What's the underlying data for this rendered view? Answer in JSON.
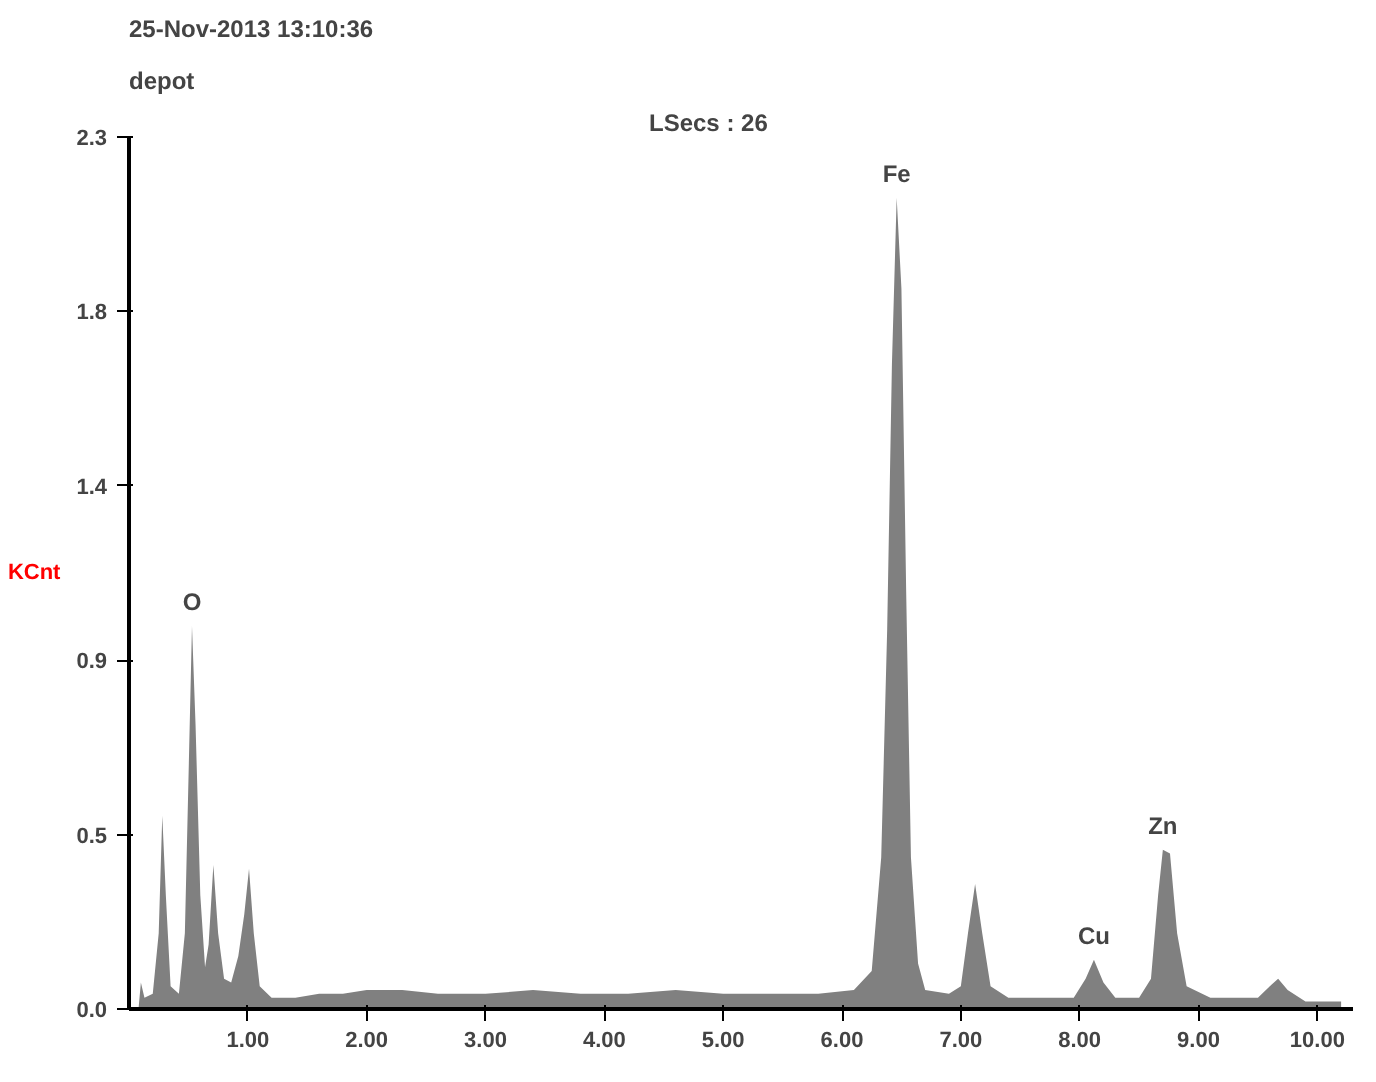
{
  "chart_data": {
    "type": "area",
    "title": "25-Nov-2013 13:10:36",
    "subtitle": "depot",
    "ylabel": "KCnt",
    "annotations": [
      "LSecs : 26",
      {
        "text": "O",
        "x": 0.53,
        "y": 1.01
      },
      {
        "text": "Fe",
        "x": 6.46,
        "y": 2.14
      },
      {
        "text": "Cu",
        "x": 8.12,
        "y": 0.13
      },
      {
        "text": "Zn",
        "x": 8.7,
        "y": 0.42
      }
    ],
    "x": [
      0.0,
      0.08,
      0.1,
      0.13,
      0.2,
      0.25,
      0.28,
      0.31,
      0.35,
      0.42,
      0.47,
      0.5,
      0.53,
      0.56,
      0.6,
      0.64,
      0.67,
      0.71,
      0.75,
      0.8,
      0.86,
      0.92,
      0.97,
      1.01,
      1.05,
      1.1,
      1.2,
      1.4,
      1.6,
      1.8,
      2.0,
      2.3,
      2.6,
      3.0,
      3.4,
      3.8,
      4.2,
      4.6,
      5.0,
      5.4,
      5.8,
      6.1,
      6.25,
      6.33,
      6.38,
      6.42,
      6.46,
      6.5,
      6.54,
      6.58,
      6.64,
      6.7,
      6.9,
      7.0,
      7.06,
      7.12,
      7.18,
      7.25,
      7.4,
      7.7,
      7.95,
      8.05,
      8.12,
      8.2,
      8.3,
      8.5,
      8.6,
      8.66,
      8.7,
      8.76,
      8.82,
      8.9,
      9.1,
      9.5,
      9.6,
      9.67,
      9.75,
      9.9,
      10.2
    ],
    "series": [
      {
        "color": "#808080",
        "values": [
          0,
          0,
          0.07,
          0.03,
          0.04,
          0.2,
          0.51,
          0.3,
          0.06,
          0.04,
          0.2,
          0.6,
          1.01,
          0.75,
          0.3,
          0.11,
          0.17,
          0.38,
          0.2,
          0.08,
          0.07,
          0.14,
          0.25,
          0.37,
          0.2,
          0.06,
          0.03,
          0.03,
          0.04,
          0.04,
          0.05,
          0.05,
          0.04,
          0.04,
          0.05,
          0.04,
          0.04,
          0.05,
          0.04,
          0.04,
          0.04,
          0.05,
          0.1,
          0.4,
          1.0,
          1.7,
          2.14,
          1.9,
          1.1,
          0.4,
          0.12,
          0.05,
          0.04,
          0.06,
          0.2,
          0.33,
          0.2,
          0.06,
          0.03,
          0.03,
          0.03,
          0.08,
          0.13,
          0.07,
          0.03,
          0.03,
          0.08,
          0.3,
          0.42,
          0.41,
          0.2,
          0.06,
          0.03,
          0.03,
          0.06,
          0.08,
          0.05,
          0.02,
          0.02
        ]
      }
    ],
    "xlim": [
      0,
      10.3
    ],
    "ylim": [
      0,
      2.3
    ],
    "xticks": [
      {
        "value": 1,
        "label": "1.00"
      },
      {
        "value": 2,
        "label": "2.00"
      },
      {
        "value": 3,
        "label": "3.00"
      },
      {
        "value": 4,
        "label": "4.00"
      },
      {
        "value": 5,
        "label": "5.00"
      },
      {
        "value": 6,
        "label": "6.00"
      },
      {
        "value": 7,
        "label": "7.00"
      },
      {
        "value": 8,
        "label": "8.00"
      },
      {
        "value": 9,
        "label": "9.00"
      },
      {
        "value": 10,
        "label": "10.00"
      }
    ],
    "yticks": [
      {
        "value": 0,
        "label": "0.0"
      },
      {
        "value": 0.46,
        "label": "0.5"
      },
      {
        "value": 0.92,
        "label": "0.9"
      },
      {
        "value": 1.38,
        "label": "1.4"
      },
      {
        "value": 1.84,
        "label": "1.8"
      },
      {
        "value": 2.3,
        "label": "2.3"
      }
    ],
    "grid": false
  }
}
